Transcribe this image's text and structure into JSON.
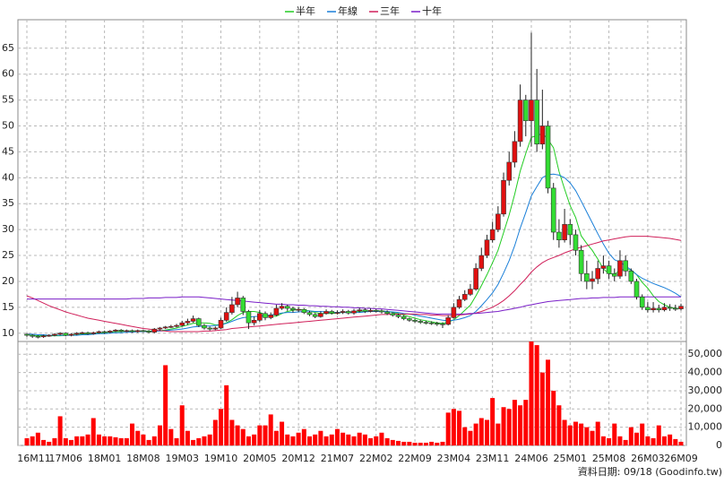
{
  "chart_data": {
    "type": "candlestick",
    "categories": [
      "16M11",
      null,
      null,
      null,
      null,
      null,
      null,
      "17M06",
      null,
      null,
      null,
      null,
      null,
      null,
      "18M01",
      null,
      null,
      null,
      null,
      null,
      null,
      "18M08",
      null,
      null,
      null,
      null,
      null,
      null,
      "19M03",
      null,
      null,
      null,
      null,
      null,
      null,
      "19M10",
      null,
      null,
      null,
      null,
      null,
      null,
      "20M05",
      null,
      null,
      null,
      null,
      null,
      null,
      "20M12",
      null,
      null,
      null,
      null,
      null,
      null,
      "21M07",
      null,
      null,
      null,
      null,
      null,
      null,
      "22M02",
      null,
      null,
      null,
      null,
      null,
      null,
      "22M09",
      null,
      null,
      null,
      null,
      null,
      null,
      "23M04",
      null,
      null,
      null,
      null,
      null,
      null,
      "23M11",
      null,
      null,
      null,
      null,
      null,
      null,
      "24M06",
      null,
      null,
      null,
      null,
      null,
      null,
      "25M01",
      null,
      null,
      null,
      null,
      null,
      null,
      "25M08",
      null,
      null,
      null,
      null,
      null,
      null,
      "26M03",
      null,
      null,
      null,
      null,
      null,
      "26M09"
    ],
    "open": [
      9.8,
      9.6,
      9.4,
      9.3,
      9.5,
      9.6,
      9.8,
      10.0,
      9.6,
      9.8,
      10.0,
      10.1,
      9.9,
      10.1,
      10.3,
      10.2,
      10.4,
      10.6,
      10.4,
      10.5,
      10.3,
      10.5,
      10.4,
      10.2,
      10.8,
      11.0,
      11.2,
      11.3,
      11.5,
      12.0,
      12.3,
      12.8,
      11.5,
      11.0,
      10.8,
      11.0,
      12.5,
      14.0,
      15.5,
      16.8,
      14.2,
      12.0,
      12.5,
      13.8,
      13.0,
      13.5,
      14.8,
      15.2,
      14.8,
      14.5,
      14.6,
      14.0,
      13.6,
      13.2,
      13.8,
      14.2,
      13.9,
      14.0,
      14.2,
      13.9,
      14.3,
      14.5,
      14.2,
      14.4,
      14.3,
      14.1,
      13.8,
      13.5,
      13.2,
      12.8,
      12.5,
      12.3,
      12.1,
      12.0,
      11.9,
      11.8,
      11.7,
      13.0,
      15.0,
      16.5,
      17.5,
      18.5,
      22.5,
      25.0,
      28.0,
      30.0,
      33.0,
      39.5,
      43.0,
      47.0,
      55.0,
      51.0,
      55.0,
      46.5,
      50.0,
      38.0,
      29.5,
      28.0,
      31.0,
      29.0,
      26.0,
      21.5,
      20.0,
      20.5,
      22.5,
      23.0,
      21.5,
      21.0,
      24.0,
      22.0,
      20.0,
      17.0,
      15.0,
      14.5,
      14.8,
      14.5,
      15.0,
      14.8,
      14.7
    ],
    "high": [
      10.0,
      9.8,
      9.6,
      9.7,
      9.8,
      10.0,
      10.2,
      10.1,
      10.0,
      10.2,
      10.3,
      10.3,
      10.3,
      10.5,
      10.5,
      10.6,
      10.8,
      10.8,
      10.7,
      10.7,
      10.7,
      10.7,
      10.6,
      11.0,
      11.2,
      11.4,
      11.6,
      11.8,
      12.4,
      12.8,
      13.4,
      13.0,
      11.8,
      11.3,
      11.3,
      13.0,
      15.0,
      17.0,
      18.0,
      17.2,
      14.5,
      13.2,
      14.5,
      14.2,
      14.0,
      15.5,
      15.8,
      15.5,
      15.1,
      15.0,
      14.8,
      14.3,
      13.9,
      14.2,
      14.6,
      14.5,
      14.4,
      14.6,
      14.5,
      14.7,
      14.9,
      14.8,
      14.8,
      14.7,
      14.6,
      14.4,
      14.0,
      13.8,
      13.5,
      13.0,
      12.8,
      12.6,
      12.4,
      12.3,
      12.2,
      12.1,
      13.5,
      15.8,
      17.2,
      18.3,
      19.5,
      23.5,
      26.5,
      29.0,
      31.5,
      34.5,
      41.0,
      45.0,
      49.0,
      58.0,
      56.0,
      68.0,
      61.0,
      57.0,
      51.0,
      39.0,
      32.0,
      34.0,
      32.0,
      30.0,
      27.0,
      24.0,
      22.0,
      24.0,
      25.0,
      24.0,
      22.5,
      26.0,
      25.0,
      22.5,
      20.5,
      17.5,
      16.0,
      16.0,
      15.5,
      15.8,
      15.6,
      15.5,
      15.7
    ],
    "low": [
      9.3,
      9.1,
      9.0,
      9.1,
      9.3,
      9.4,
      9.6,
      9.4,
      9.4,
      9.6,
      9.8,
      9.7,
      9.7,
      9.9,
      9.9,
      10.0,
      10.2,
      10.2,
      10.2,
      10.1,
      10.1,
      10.2,
      10.0,
      10.0,
      10.5,
      10.8,
      11.0,
      11.1,
      11.3,
      11.6,
      12.0,
      11.2,
      10.7,
      10.5,
      10.6,
      10.8,
      12.2,
      13.6,
      15.0,
      13.5,
      10.8,
      11.5,
      12.2,
      12.5,
      12.7,
      13.3,
      14.5,
      14.3,
      14.0,
      14.1,
      13.7,
      13.3,
      12.9,
      13.0,
      13.6,
      13.6,
      13.6,
      13.7,
      13.6,
      13.6,
      14.0,
      13.9,
      14.0,
      14.0,
      13.8,
      13.5,
      13.2,
      12.9,
      12.5,
      12.2,
      12.0,
      11.8,
      11.7,
      11.6,
      11.4,
      11.0,
      11.5,
      12.8,
      14.7,
      16.2,
      17.2,
      18.2,
      22.0,
      24.5,
      27.5,
      29.5,
      32.5,
      38.5,
      42.0,
      46.0,
      48.0,
      46.0,
      45.0,
      45.5,
      37.0,
      28.0,
      26.5,
      27.5,
      27.0,
      25.0,
      20.0,
      18.5,
      18.5,
      19.5,
      21.5,
      20.5,
      20.0,
      20.5,
      21.0,
      19.5,
      16.5,
      14.5,
      14.0,
      14.0,
      14.0,
      14.2,
      14.3,
      14.3,
      14.4
    ],
    "close": [
      9.6,
      9.4,
      9.3,
      9.5,
      9.6,
      9.8,
      10.0,
      9.6,
      9.8,
      10.0,
      10.1,
      9.9,
      10.1,
      10.3,
      10.2,
      10.4,
      10.6,
      10.4,
      10.5,
      10.3,
      10.5,
      10.4,
      10.2,
      10.8,
      11.0,
      11.2,
      11.3,
      11.5,
      12.0,
      12.3,
      12.8,
      11.5,
      11.0,
      10.8,
      11.0,
      12.5,
      14.0,
      15.5,
      16.8,
      14.2,
      12.0,
      12.5,
      13.8,
      13.0,
      13.5,
      14.8,
      15.2,
      14.8,
      14.5,
      14.6,
      14.0,
      13.6,
      13.2,
      13.8,
      14.2,
      13.9,
      14.0,
      14.2,
      13.9,
      14.3,
      14.5,
      14.2,
      14.4,
      14.3,
      14.1,
      13.8,
      13.5,
      13.2,
      12.8,
      12.5,
      12.3,
      12.1,
      12.0,
      11.9,
      11.8,
      11.7,
      13.0,
      15.0,
      16.5,
      17.5,
      18.5,
      22.5,
      25.0,
      28.0,
      30.0,
      33.0,
      39.5,
      43.0,
      47.0,
      55.0,
      51.0,
      55.0,
      46.5,
      50.0,
      38.0,
      29.5,
      28.0,
      31.0,
      29.0,
      26.0,
      21.5,
      20.0,
      20.5,
      22.5,
      23.0,
      21.5,
      21.0,
      24.0,
      22.0,
      20.0,
      17.0,
      15.0,
      14.5,
      14.8,
      14.5,
      15.0,
      14.8,
      14.7,
      15.2
    ],
    "up_color": "#e01010",
    "down_color": "#33dd33",
    "volume": {
      "color": "#ff0000",
      "axis": "y2",
      "values": [
        4000,
        5000,
        7000,
        3000,
        2000,
        4000,
        16000,
        4000,
        3000,
        5000,
        5000,
        6000,
        15000,
        6000,
        5000,
        5000,
        4500,
        4000,
        4000,
        12000,
        8000,
        6000,
        3000,
        5000,
        11000,
        44000,
        9000,
        4000,
        22000,
        8000,
        3000,
        4000,
        5000,
        6000,
        14000,
        20000,
        33000,
        14000,
        11000,
        9000,
        5000,
        6000,
        11000,
        11000,
        17000,
        8000,
        13000,
        6000,
        5000,
        7000,
        9000,
        5000,
        6000,
        8000,
        5000,
        6000,
        9000,
        7000,
        6000,
        5000,
        7000,
        6000,
        4000,
        5000,
        7000,
        4000,
        3000,
        2500,
        2000,
        2000,
        1500,
        1500,
        1500,
        2000,
        1500,
        2000,
        18000,
        20000,
        19000,
        10000,
        8000,
        12000,
        15000,
        14000,
        26000,
        12000,
        21000,
        20000,
        25000,
        22000,
        25000,
        57000,
        55000,
        40000,
        47000,
        30000,
        22000,
        14000,
        11000,
        13000,
        12000,
        10000,
        8000,
        13000,
        5000,
        4000,
        12000,
        5000,
        3000,
        10000,
        7000,
        12000,
        5000,
        4000,
        11000,
        5000,
        6000,
        3500,
        2000
      ]
    },
    "series": [
      {
        "name": "半年",
        "color": "#22cc22",
        "values": [
          9.7,
          9.6,
          9.5,
          9.5,
          9.5,
          9.5,
          9.5,
          9.6,
          9.7,
          9.8,
          9.8,
          9.9,
          9.9,
          10.0,
          10.1,
          10.2,
          10.3,
          10.3,
          10.4,
          10.4,
          10.4,
          10.4,
          10.4,
          10.4,
          10.5,
          10.6,
          10.8,
          11.0,
          11.3,
          11.6,
          11.9,
          12.0,
          12.0,
          11.9,
          11.6,
          11.6,
          12.0,
          12.6,
          13.4,
          14.0,
          14.2,
          14.2,
          14.0,
          13.6,
          13.2,
          13.3,
          13.8,
          14.2,
          14.4,
          14.6,
          14.5,
          14.3,
          14.0,
          13.8,
          13.8,
          13.8,
          13.9,
          14.0,
          14.0,
          14.1,
          14.2,
          14.3,
          14.3,
          14.3,
          14.3,
          14.2,
          14.0,
          13.8,
          13.5,
          13.2,
          12.9,
          12.6,
          12.4,
          12.2,
          12.0,
          11.9,
          12.1,
          12.6,
          13.4,
          14.4,
          15.4,
          17.2,
          19.2,
          21.3,
          23.6,
          26.0,
          29.4,
          32.8,
          36.8,
          41.3,
          44.7,
          47.8,
          48.1,
          48.6,
          47.4,
          45.8,
          41.2,
          37.8,
          34.6,
          32.3,
          28.8,
          27.3,
          26.0,
          24.3,
          22.4,
          21.5,
          21.4,
          22.1,
          22.4,
          22.2,
          21.3,
          19.8,
          18.7,
          17.2,
          16.1,
          15.5,
          15.0,
          14.8,
          14.8
        ]
      },
      {
        "name": "年線",
        "color": "#1a7fd8",
        "values": [
          9.8,
          9.8,
          9.7,
          9.7,
          9.6,
          9.6,
          9.6,
          9.6,
          9.6,
          9.6,
          9.7,
          9.7,
          9.8,
          9.9,
          9.9,
          10.0,
          10.1,
          10.1,
          10.2,
          10.2,
          10.3,
          10.3,
          10.3,
          10.4,
          10.4,
          10.5,
          10.6,
          10.7,
          10.8,
          11.0,
          11.2,
          11.3,
          11.4,
          11.4,
          11.5,
          11.6,
          11.9,
          12.3,
          12.7,
          13.0,
          13.1,
          13.2,
          13.3,
          13.4,
          13.5,
          13.7,
          13.9,
          14.0,
          14.0,
          14.1,
          14.2,
          14.3,
          14.2,
          14.2,
          14.1,
          14.0,
          14.0,
          14.0,
          14.0,
          14.0,
          14.0,
          14.1,
          14.2,
          14.2,
          14.2,
          14.2,
          14.1,
          14.0,
          13.8,
          13.7,
          13.5,
          13.3,
          13.1,
          12.9,
          12.7,
          12.5,
          12.4,
          12.5,
          12.7,
          13.0,
          13.4,
          14.2,
          15.3,
          16.5,
          17.8,
          19.4,
          21.6,
          24.0,
          26.9,
          30.3,
          33.3,
          36.5,
          38.3,
          40.0,
          40.6,
          40.7,
          40.5,
          40.0,
          39.0,
          37.5,
          35.5,
          33.4,
          31.3,
          29.2,
          27.2,
          25.4,
          24.2,
          23.7,
          23.0,
          22.2,
          21.3,
          20.6,
          20.1,
          19.6,
          19.2,
          18.8,
          18.3,
          17.7,
          17.0
        ]
      },
      {
        "name": "三年",
        "color": "#d0205a",
        "values": [
          17.2,
          16.8,
          16.3,
          15.8,
          15.3,
          14.9,
          14.5,
          14.1,
          13.8,
          13.5,
          13.2,
          12.9,
          12.7,
          12.5,
          12.3,
          12.1,
          11.9,
          11.7,
          11.5,
          11.3,
          11.1,
          10.9,
          10.8,
          10.6,
          10.5,
          10.4,
          10.3,
          10.3,
          10.3,
          10.3,
          10.3,
          10.3,
          10.4,
          10.4,
          10.5,
          10.6,
          10.7,
          10.9,
          11.0,
          11.1,
          11.2,
          11.3,
          11.4,
          11.5,
          11.6,
          11.7,
          11.8,
          11.9,
          12.0,
          12.1,
          12.2,
          12.3,
          12.4,
          12.5,
          12.6,
          12.7,
          12.8,
          12.9,
          13.0,
          13.1,
          13.2,
          13.3,
          13.4,
          13.5,
          13.6,
          13.6,
          13.7,
          13.7,
          13.7,
          13.7,
          13.7,
          13.6,
          13.6,
          13.5,
          13.5,
          13.4,
          13.4,
          13.4,
          13.5,
          13.6,
          13.7,
          13.9,
          14.2,
          14.6,
          15.0,
          15.6,
          16.3,
          17.2,
          18.2,
          19.4,
          20.5,
          21.8,
          22.8,
          23.6,
          24.2,
          24.6,
          25.0,
          25.5,
          25.9,
          26.3,
          26.6,
          26.9,
          27.2,
          27.5,
          27.8,
          28.0,
          28.2,
          28.4,
          28.6,
          28.7,
          28.7,
          28.7,
          28.7,
          28.6,
          28.5,
          28.4,
          28.3,
          28.1,
          27.9
        ]
      },
      {
        "name": "十年",
        "color": "#7a1fc8",
        "values": [
          16.6,
          16.6,
          16.6,
          16.6,
          16.6,
          16.6,
          16.6,
          16.6,
          16.6,
          16.6,
          16.6,
          16.6,
          16.6,
          16.6,
          16.6,
          16.6,
          16.6,
          16.6,
          16.6,
          16.7,
          16.7,
          16.7,
          16.8,
          16.8,
          16.8,
          16.9,
          16.9,
          16.9,
          17.0,
          17.0,
          17.0,
          17.0,
          16.9,
          16.8,
          16.7,
          16.6,
          16.5,
          16.4,
          16.3,
          16.2,
          16.1,
          16.0,
          15.9,
          15.8,
          15.7,
          15.6,
          15.6,
          15.5,
          15.5,
          15.4,
          15.4,
          15.3,
          15.3,
          15.2,
          15.2,
          15.1,
          15.1,
          15.0,
          15.0,
          14.9,
          14.9,
          14.8,
          14.8,
          14.7,
          14.7,
          14.6,
          14.5,
          14.4,
          14.3,
          14.2,
          14.1,
          14.0,
          13.9,
          13.8,
          13.7,
          13.7,
          13.7,
          13.7,
          13.7,
          13.7,
          13.8,
          13.8,
          13.9,
          14.0,
          14.1,
          14.2,
          14.4,
          14.6,
          14.8,
          15.0,
          15.3,
          15.5,
          15.7,
          15.9,
          16.1,
          16.2,
          16.3,
          16.4,
          16.5,
          16.6,
          16.7,
          16.7,
          16.8,
          16.8,
          16.9,
          16.9,
          16.9,
          17.0,
          17.0,
          17.0,
          17.0,
          17.0,
          17.0,
          17.0,
          17.0,
          17.0,
          17.0,
          17.0,
          17.0
        ]
      }
    ],
    "ylim": [
      8.4,
      70.5
    ],
    "yticks": [
      10,
      15,
      20,
      25,
      30,
      35,
      40,
      45,
      50,
      55,
      60,
      65
    ],
    "y2lim": [
      0,
      57000
    ],
    "y2ticks": [
      0,
      {
        "value": 10000,
        "label": "10,000"
      },
      {
        "value": 20000,
        "label": "20,000"
      },
      {
        "value": 30000,
        "label": "30,000"
      },
      {
        "value": 40000,
        "label": "40,000"
      },
      {
        "value": 50000,
        "label": "50,000"
      }
    ],
    "grid": true,
    "footer": "資料日期: 09/18 (Goodinfo.tw)"
  }
}
